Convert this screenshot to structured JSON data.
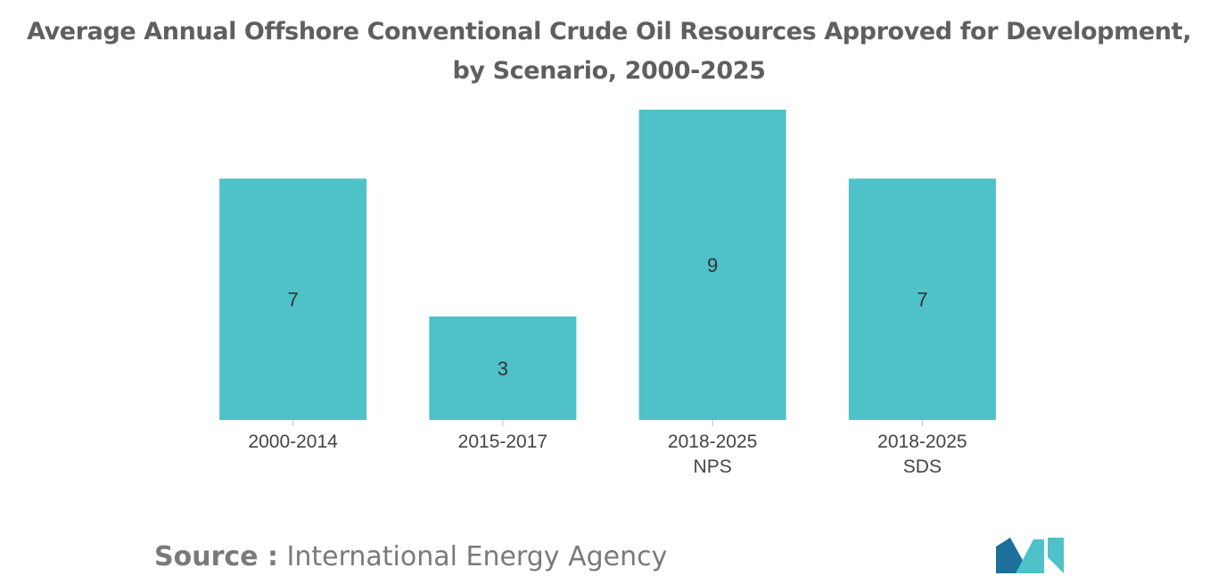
{
  "title_lines": [
    "Average Annual Offshore Conventional Crude Oil Resources Approved for Development,",
    "by Scenario, 2000-2025"
  ],
  "source": {
    "label": "Source :",
    "value": "International Energy Agency"
  },
  "colors": {
    "bar": "#4fc1c9",
    "title": "#5f5f5f",
    "source": "#7a7a7a",
    "logo_dark": "#1d6f9c",
    "logo_light": "#4fc1c9"
  },
  "chart_data": {
    "type": "bar",
    "title": "Average Annual Offshore Conventional Crude Oil Resources Approved for Development, by Scenario, 2000-2025",
    "categories": [
      [
        "2000-2014"
      ],
      [
        "2015-2017"
      ],
      [
        "2018-2025",
        "NPS"
      ],
      [
        "2018-2025",
        "SDS"
      ]
    ],
    "values": [
      7,
      3,
      9,
      7
    ],
    "data_labels": [
      "7",
      "3",
      "9",
      "7"
    ],
    "xlabel": "",
    "ylabel": "",
    "ylim": [
      0,
      9
    ],
    "grid": false,
    "legend": "none"
  }
}
